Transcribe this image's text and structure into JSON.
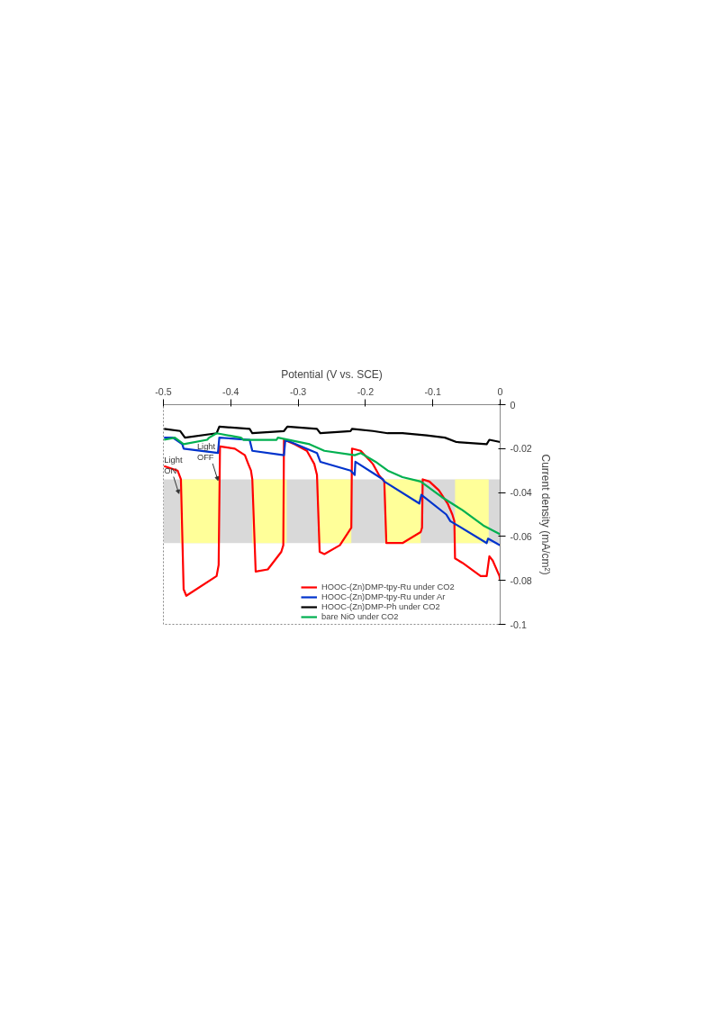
{
  "chart_data": {
    "type": "line",
    "xlabel": "Potential (V vs. SCE)",
    "ylabel": "Current density (mA/cm²)",
    "xlim": [
      -0.5,
      0
    ],
    "ylim": [
      -0.1,
      0
    ],
    "xticks": [
      -0.5,
      -0.4,
      -0.3,
      -0.2,
      -0.1,
      0
    ],
    "yticks": [
      0,
      -0.02,
      -0.04,
      -0.06,
      -0.08,
      -0.1
    ],
    "grid": false,
    "legend": "bottom right",
    "line_style": "solid",
    "marker": "none",
    "bands": [
      {
        "axis": "y",
        "from": -0.063,
        "to": -0.034,
        "color": "#d9d9d9"
      },
      {
        "axis": "x",
        "from": -0.475,
        "to": -0.417,
        "color": "#ffff99"
      },
      {
        "axis": "x",
        "from": -0.368,
        "to": -0.317,
        "color": "#ffff99"
      },
      {
        "axis": "x",
        "from": -0.27,
        "to": -0.221,
        "color": "#ffff99"
      },
      {
        "axis": "x",
        "from": -0.171,
        "to": -0.118,
        "color": "#ffff99"
      },
      {
        "axis": "x",
        "from": -0.067,
        "to": -0.017,
        "color": "#ffff99"
      }
    ],
    "annotations": [
      {
        "text": "Light ON",
        "x": -0.475,
        "y": -0.04
      },
      {
        "text": "Light OFF",
        "x": -0.417,
        "y": -0.034
      }
    ],
    "series": [
      {
        "name": "HOOC-(Zn)DMP-tpy-Ru under CO2",
        "color": "#ff0000",
        "x": [
          -0.499,
          -0.479,
          -0.474,
          -0.47,
          -0.466,
          -0.421,
          -0.418,
          -0.416,
          -0.394,
          -0.379,
          -0.374,
          -0.37,
          -0.368,
          -0.363,
          -0.345,
          -0.325,
          -0.322,
          -0.321,
          -0.305,
          -0.287,
          -0.276,
          -0.272,
          -0.268,
          -0.261,
          -0.238,
          -0.221,
          -0.22,
          -0.207,
          -0.189,
          -0.18,
          -0.172,
          -0.169,
          -0.145,
          -0.118,
          -0.116,
          -0.115,
          -0.105,
          -0.091,
          -0.078,
          -0.071,
          -0.068,
          -0.067,
          -0.056,
          -0.029,
          -0.02,
          -0.016,
          -0.011,
          -0.001,
          0
        ],
        "values": [
          -0.028,
          -0.03,
          -0.034,
          -0.084,
          -0.087,
          -0.078,
          -0.073,
          -0.019,
          -0.02,
          -0.023,
          -0.027,
          -0.03,
          -0.034,
          -0.076,
          -0.075,
          -0.067,
          -0.064,
          -0.016,
          -0.018,
          -0.021,
          -0.027,
          -0.032,
          -0.067,
          -0.068,
          -0.064,
          -0.056,
          -0.02,
          -0.021,
          -0.027,
          -0.032,
          -0.035,
          -0.063,
          -0.063,
          -0.058,
          -0.056,
          -0.034,
          -0.035,
          -0.039,
          -0.045,
          -0.05,
          -0.053,
          -0.07,
          -0.072,
          -0.078,
          -0.078,
          -0.069,
          -0.071,
          -0.078,
          -0.08
        ]
      },
      {
        "name": "HOOC-(Zn)DMP-tpy-Ru under Ar",
        "color": "#0033cc",
        "x": [
          -0.499,
          -0.486,
          -0.472,
          -0.47,
          -0.419,
          -0.417,
          -0.372,
          -0.368,
          -0.321,
          -0.319,
          -0.272,
          -0.267,
          -0.222,
          -0.216,
          -0.215,
          -0.174,
          -0.172,
          -0.12,
          -0.117,
          -0.08,
          -0.074,
          -0.02,
          -0.018,
          0
        ],
        "values": [
          -0.015,
          -0.015,
          -0.018,
          -0.02,
          -0.022,
          -0.015,
          -0.016,
          -0.021,
          -0.023,
          -0.016,
          -0.022,
          -0.026,
          -0.03,
          -0.032,
          -0.026,
          -0.034,
          -0.035,
          -0.045,
          -0.041,
          -0.05,
          -0.053,
          -0.063,
          -0.061,
          -0.064
        ]
      },
      {
        "name": "HOOC-(Zn)DMP-Ph under CO2",
        "color": "#000000",
        "x": [
          -0.499,
          -0.475,
          -0.468,
          -0.421,
          -0.417,
          -0.372,
          -0.368,
          -0.321,
          -0.316,
          -0.272,
          -0.267,
          -0.222,
          -0.22,
          -0.189,
          -0.167,
          -0.145,
          -0.109,
          -0.082,
          -0.065,
          -0.02,
          -0.016,
          0
        ],
        "values": [
          -0.011,
          -0.012,
          -0.015,
          -0.013,
          -0.01,
          -0.011,
          -0.013,
          -0.012,
          -0.01,
          -0.011,
          -0.013,
          -0.012,
          -0.011,
          -0.012,
          -0.013,
          -0.013,
          -0.014,
          -0.015,
          -0.017,
          -0.018,
          -0.016,
          -0.017
        ]
      },
      {
        "name": "bare NiO under CO2",
        "color": "#00b050",
        "x": [
          -0.499,
          -0.483,
          -0.47,
          -0.435,
          -0.432,
          -0.421,
          -0.385,
          -0.381,
          -0.332,
          -0.33,
          -0.283,
          -0.261,
          -0.216,
          -0.207,
          -0.185,
          -0.167,
          -0.145,
          -0.118,
          -0.087,
          -0.056,
          -0.025,
          0
        ],
        "values": [
          -0.016,
          -0.015,
          -0.018,
          -0.016,
          -0.015,
          -0.013,
          -0.015,
          -0.016,
          -0.016,
          -0.015,
          -0.018,
          -0.021,
          -0.023,
          -0.022,
          -0.026,
          -0.03,
          -0.033,
          -0.035,
          -0.042,
          -0.048,
          -0.055,
          -0.059
        ]
      }
    ]
  }
}
